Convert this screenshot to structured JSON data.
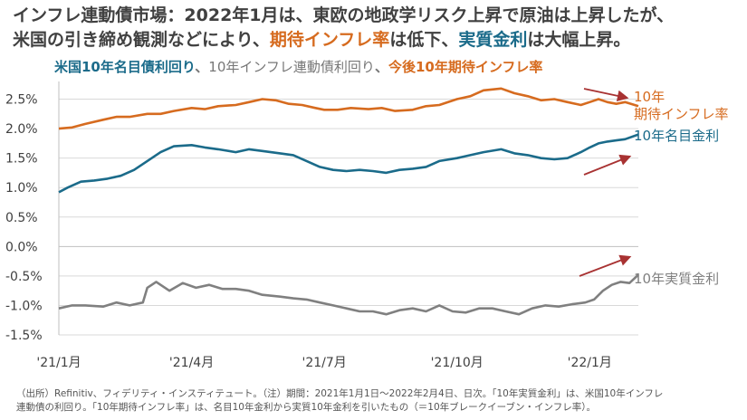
{
  "header": {
    "title_line1": "インフレ連動債市場：2022年1月は、東欧の地政学リスク上昇で原油は上昇したが、",
    "title_line2_a": "米国の引き締め観測などにより、",
    "title_line2_b": "期待インフレ率",
    "title_line2_c": "は低下、",
    "title_line2_d": "実質金利",
    "title_line2_e": "は大幅上昇。",
    "subtitle_nominal": "米国10年名目債利回り",
    "subtitle_sep1": "、",
    "subtitle_breakeven": "10年インフレ連動債利回り",
    "subtitle_sep2": "、",
    "subtitle_inflation": "今後10年期待インフレ率"
  },
  "footnote": {
    "line1": "（出所）Refinitiv、フィデリティ・インスティテュート。（注）期間：2021年1月1日〜2022年2月4日、日次。「10年実質金利」は、米国10年インフレ",
    "line2": "連動債の利回り。「10年期待インフレ率」は、名目10年金利から実質10年金利を引いたもの（＝10年ブレークイーブン・インフレ率）。"
  },
  "colors": {
    "inflation": "#d66b1f",
    "nominal": "#1b6b8a",
    "real": "#808080",
    "arrow": "#a83232",
    "grid": "#d9d9d9"
  },
  "chart_data": {
    "type": "line",
    "title": "米国10年名目債利回り、10年インフレ連動債利回り、今後10年期待インフレ率",
    "xlabel": "",
    "ylabel": "",
    "x_range": [
      0,
      13.1
    ],
    "ylim": [
      -1.5,
      2.8
    ],
    "y_ticks": [
      2.5,
      2.0,
      1.5,
      1.0,
      0.5,
      0.0,
      -0.5,
      -1.0,
      -1.5
    ],
    "y_tick_labels": [
      "2.5%",
      "2.0%",
      "1.5%",
      "1.0%",
      "0.5%",
      "0.0%",
      "-0.5%",
      "-1.0%",
      "-1.5%"
    ],
    "x_ticks": [
      0,
      3,
      6,
      9,
      12
    ],
    "x_tick_labels": [
      "'21/1月",
      "'21/4月",
      "'21/7月",
      "'21/10月",
      "'22/1月"
    ],
    "series": [
      {
        "name": "10年期待インフレ率",
        "label_line1": "10年",
        "label_line2": "期待インフレ率",
        "color_key": "inflation",
        "x": [
          0,
          0.3,
          0.6,
          1.0,
          1.3,
          1.6,
          2.0,
          2.3,
          2.6,
          3.0,
          3.3,
          3.6,
          4.0,
          4.3,
          4.6,
          4.9,
          5.2,
          5.5,
          5.8,
          6.0,
          6.3,
          6.6,
          7.0,
          7.3,
          7.6,
          8.0,
          8.3,
          8.6,
          9.0,
          9.3,
          9.6,
          10.0,
          10.3,
          10.6,
          10.9,
          11.2,
          11.5,
          11.8,
          12.0,
          12.2,
          12.4,
          12.6,
          12.8,
          13.1
        ],
        "values": [
          2.0,
          2.02,
          2.08,
          2.15,
          2.2,
          2.2,
          2.25,
          2.25,
          2.3,
          2.35,
          2.33,
          2.38,
          2.4,
          2.45,
          2.5,
          2.48,
          2.42,
          2.4,
          2.35,
          2.32,
          2.32,
          2.35,
          2.33,
          2.35,
          2.3,
          2.32,
          2.38,
          2.4,
          2.5,
          2.55,
          2.65,
          2.68,
          2.6,
          2.55,
          2.48,
          2.5,
          2.45,
          2.4,
          2.45,
          2.5,
          2.45,
          2.42,
          2.45,
          2.38
        ]
      },
      {
        "name": "10年名目金利",
        "label_line1": "10年名目金利",
        "color_key": "nominal",
        "x": [
          0,
          0.2,
          0.5,
          0.8,
          1.1,
          1.4,
          1.7,
          2.0,
          2.3,
          2.6,
          3.0,
          3.3,
          3.6,
          4.0,
          4.3,
          4.6,
          5.0,
          5.3,
          5.6,
          5.9,
          6.2,
          6.5,
          6.8,
          7.1,
          7.4,
          7.7,
          8.0,
          8.3,
          8.6,
          9.0,
          9.3,
          9.6,
          10.0,
          10.3,
          10.6,
          10.9,
          11.2,
          11.5,
          11.8,
          12.0,
          12.2,
          12.4,
          12.6,
          12.8,
          13.1
        ],
        "values": [
          0.92,
          1.0,
          1.1,
          1.12,
          1.15,
          1.2,
          1.3,
          1.45,
          1.6,
          1.7,
          1.72,
          1.68,
          1.65,
          1.6,
          1.65,
          1.62,
          1.58,
          1.55,
          1.45,
          1.35,
          1.3,
          1.28,
          1.3,
          1.28,
          1.25,
          1.3,
          1.32,
          1.35,
          1.45,
          1.5,
          1.55,
          1.6,
          1.65,
          1.58,
          1.55,
          1.5,
          1.48,
          1.5,
          1.6,
          1.68,
          1.75,
          1.78,
          1.8,
          1.82,
          1.9
        ]
      },
      {
        "name": "10年実質金利",
        "label_line1": "10年実質金利",
        "color_key": "real",
        "x": [
          0,
          0.3,
          0.6,
          1.0,
          1.3,
          1.6,
          1.9,
          2.0,
          2.2,
          2.5,
          2.8,
          3.1,
          3.4,
          3.7,
          4.0,
          4.3,
          4.6,
          5.0,
          5.3,
          5.6,
          5.9,
          6.2,
          6.5,
          6.8,
          7.1,
          7.4,
          7.7,
          8.0,
          8.3,
          8.6,
          8.9,
          9.2,
          9.5,
          9.8,
          10.1,
          10.4,
          10.7,
          11.0,
          11.3,
          11.6,
          11.9,
          12.1,
          12.3,
          12.5,
          12.7,
          12.9,
          13.1
        ],
        "values": [
          -1.05,
          -1.0,
          -1.0,
          -1.02,
          -0.95,
          -1.0,
          -0.95,
          -0.7,
          -0.6,
          -0.75,
          -0.62,
          -0.7,
          -0.65,
          -0.72,
          -0.72,
          -0.75,
          -0.82,
          -0.85,
          -0.88,
          -0.9,
          -0.95,
          -1.0,
          -1.05,
          -1.1,
          -1.1,
          -1.15,
          -1.08,
          -1.05,
          -1.1,
          -1.0,
          -1.1,
          -1.12,
          -1.05,
          -1.05,
          -1.1,
          -1.15,
          -1.05,
          -1.0,
          -1.02,
          -0.98,
          -0.95,
          -0.9,
          -0.75,
          -0.65,
          -0.6,
          -0.62,
          -0.48
        ]
      }
    ]
  }
}
